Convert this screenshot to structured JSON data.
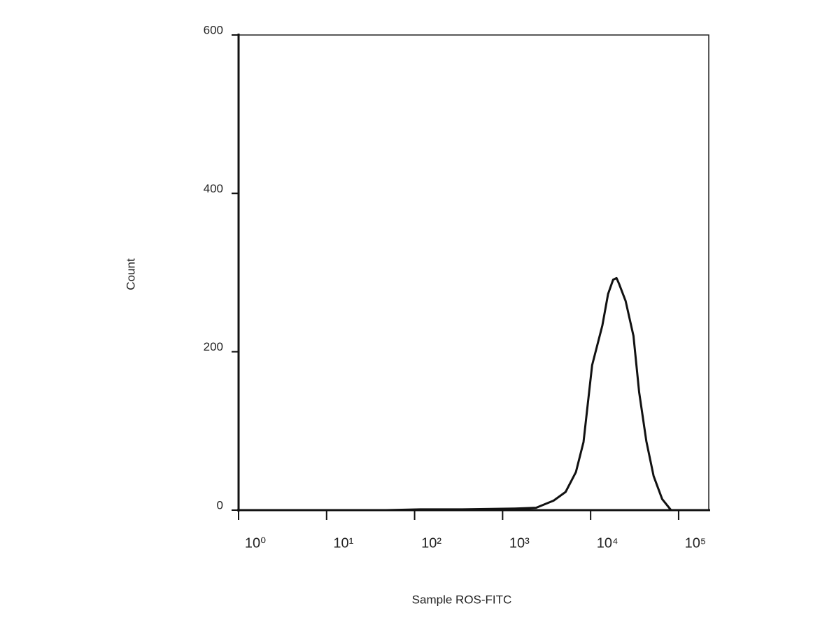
{
  "chart_data": {
    "type": "line",
    "xlabel": "Sample ROS-FITC",
    "ylabel": "Count",
    "xscale": "log",
    "xlim": [
      1,
      220000
    ],
    "xticks": [
      {
        "value": 1,
        "label": "10⁰"
      },
      {
        "value": 10,
        "label": "10¹"
      },
      {
        "value": 100,
        "label": "10²"
      },
      {
        "value": 1000,
        "label": "10³"
      },
      {
        "value": 10000,
        "label": "10⁴"
      },
      {
        "value": 100000,
        "label": "10⁵"
      }
    ],
    "ylim": [
      0,
      600
    ],
    "yticks": [
      0,
      200,
      400,
      600
    ],
    "color": "#111111",
    "x": [
      48,
      116,
      350,
      1380,
      2400,
      3800,
      5200,
      6800,
      8300,
      10400,
      13600,
      15800,
      18000,
      19700,
      21000,
      25000,
      30700,
      35600,
      43000,
      52000,
      65000,
      82000
    ],
    "values": [
      0,
      1,
      1,
      2,
      3,
      12,
      23,
      48,
      86,
      183,
      233,
      273,
      291,
      293,
      286,
      264,
      220,
      149,
      87,
      43,
      14,
      0
    ]
  }
}
